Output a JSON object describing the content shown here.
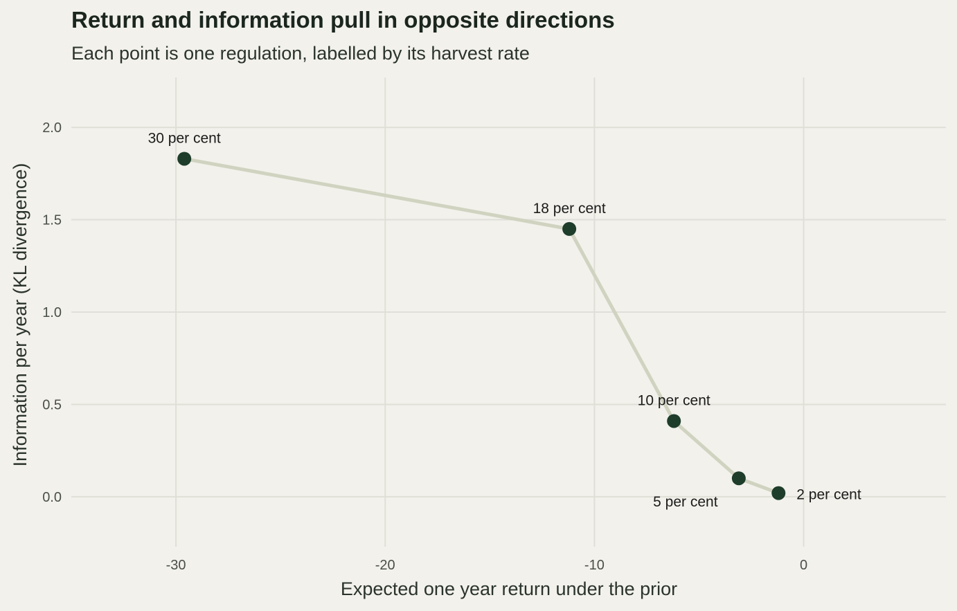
{
  "header": {
    "title": "Return and information pull in opposite directions",
    "subtitle": "Each point is one regulation, labelled by its harvest rate"
  },
  "colors": {
    "background": "#f2f1eb",
    "grid": "#dfdfd8",
    "line": "#d0d3c0",
    "point": "#1e3d2b"
  },
  "chart_data": {
    "type": "line",
    "title": "Return and information pull in opposite directions",
    "subtitle": "Each point is one regulation, labelled by its harvest rate",
    "xlabel": "Expected one year return under the prior",
    "ylabel": "Information per year (KL divergence)",
    "xlim": [
      -35,
      6.8
    ],
    "ylim": [
      -0.27,
      2.27
    ],
    "xticks": [
      -30,
      -20,
      -10,
      0
    ],
    "xtick_labels": [
      "-30",
      "-20",
      "-10",
      "0"
    ],
    "yticks": [
      0,
      0.5,
      1,
      1.5,
      2
    ],
    "ytick_labels": [
      "0.0",
      "0.5",
      "1.0",
      "1.5",
      "2.0"
    ],
    "grid": true,
    "legend": "none",
    "points": [
      {
        "label": "30 per cent",
        "x": -29.6,
        "y": 1.83,
        "label_pos": "above"
      },
      {
        "label": "18 per cent",
        "x": -11.2,
        "y": 1.45,
        "label_pos": "above"
      },
      {
        "label": "10 per cent",
        "x": -6.2,
        "y": 0.41,
        "label_pos": "above"
      },
      {
        "label": "5 per cent",
        "x": -3.1,
        "y": 0.1,
        "label_pos": "below-left"
      },
      {
        "label": "2 per cent",
        "x": -1.2,
        "y": 0.02,
        "label_pos": "right"
      }
    ]
  }
}
